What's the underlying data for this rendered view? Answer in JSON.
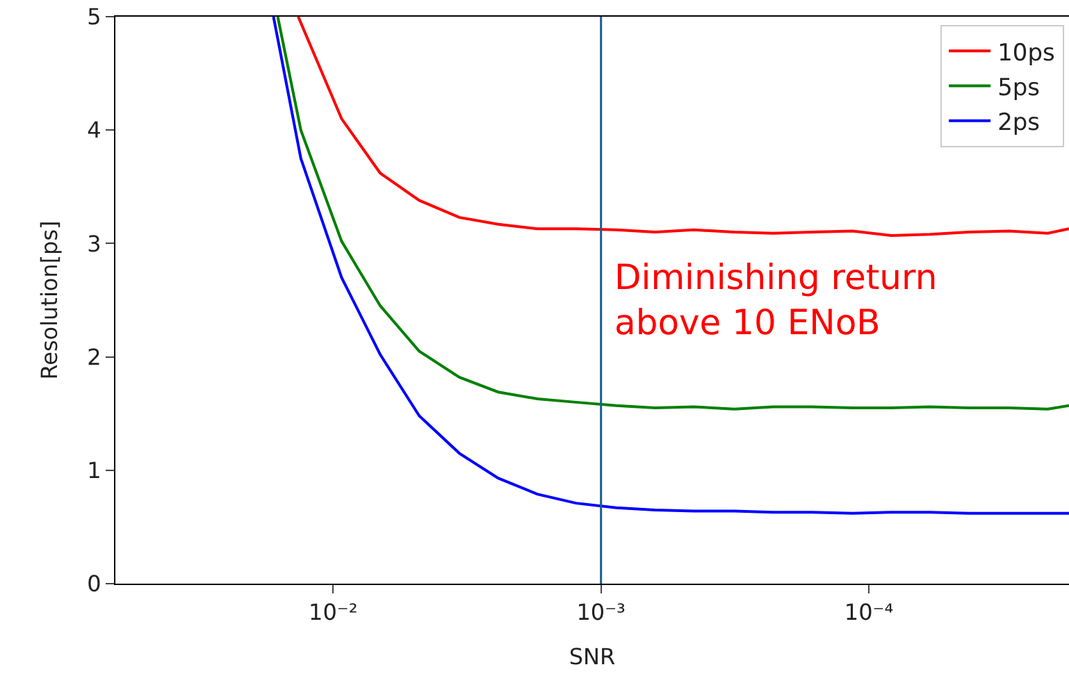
{
  "chart_data": {
    "type": "line",
    "xlabel": "SNR",
    "ylabel": "Resolution[ps]",
    "log": "x",
    "xlim": [
      0.065,
      1.79e-05
    ],
    "ylim": [
      0,
      5
    ],
    "xticks": [
      {
        "value": 0.01,
        "label": "10⁻²"
      },
      {
        "value": 0.001,
        "label": "10⁻³"
      },
      {
        "value": 0.0001,
        "label": "10⁻⁴"
      }
    ],
    "yticks": [
      0,
      1,
      2,
      3,
      4,
      5
    ],
    "grid": false,
    "legend": "top right",
    "marker": "none",
    "line_style": "solid",
    "series": [
      {
        "name": "10ps",
        "color": "#ff0000",
        "x": [
          0.0135,
          0.0093,
          0.00667,
          0.00477,
          0.00338,
          0.00242,
          0.00173,
          0.00124,
          0.000877,
          0.000628,
          0.00045,
          0.000318,
          0.000228,
          0.000163,
          0.000115,
          8.26e-05,
          5.91e-05,
          4.24e-05,
          3e-05,
          2.15e-05,
          1.79e-05
        ],
        "values": [
          5,
          4.1,
          3.62,
          3.38,
          3.23,
          3.17,
          3.13,
          3.13,
          3.12,
          3.1,
          3.12,
          3.1,
          3.09,
          3.1,
          3.11,
          3.07,
          3.08,
          3.1,
          3.11,
          3.09,
          3.13
        ]
      },
      {
        "name": "5ps",
        "color": "#008000",
        "x": [
          0.0161,
          0.0132,
          0.0093,
          0.00667,
          0.00477,
          0.00338,
          0.00242,
          0.00173,
          0.00124,
          0.000877,
          0.000628,
          0.00045,
          0.000318,
          0.000228,
          0.000163,
          0.000115,
          8.26e-05,
          5.91e-05,
          4.24e-05,
          3e-05,
          2.15e-05,
          1.79e-05
        ],
        "values": [
          5,
          4.0,
          3.02,
          2.45,
          2.05,
          1.82,
          1.69,
          1.63,
          1.6,
          1.57,
          1.55,
          1.56,
          1.54,
          1.56,
          1.56,
          1.55,
          1.55,
          1.56,
          1.55,
          1.55,
          1.54,
          1.57
        ]
      },
      {
        "name": "2ps",
        "color": "#0000ff",
        "x": [
          0.0167,
          0.0132,
          0.0093,
          0.00667,
          0.00477,
          0.00338,
          0.00242,
          0.00173,
          0.00124,
          0.000877,
          0.000628,
          0.00045,
          0.000318,
          0.000228,
          0.000163,
          0.000115,
          8.26e-05,
          5.91e-05,
          4.24e-05,
          3e-05,
          2.15e-05,
          1.79e-05
        ],
        "values": [
          5,
          3.75,
          2.7,
          2.02,
          1.48,
          1.15,
          0.93,
          0.79,
          0.71,
          0.67,
          0.65,
          0.64,
          0.64,
          0.63,
          0.63,
          0.62,
          0.63,
          0.63,
          0.62,
          0.62,
          0.62,
          0.62
        ]
      }
    ],
    "ref_lines": [
      {
        "axis": "x",
        "value": 0.001,
        "color": "#1a5e8a"
      }
    ],
    "annotations": [
      "Diminishing return\nabove 10 ENoB"
    ]
  }
}
